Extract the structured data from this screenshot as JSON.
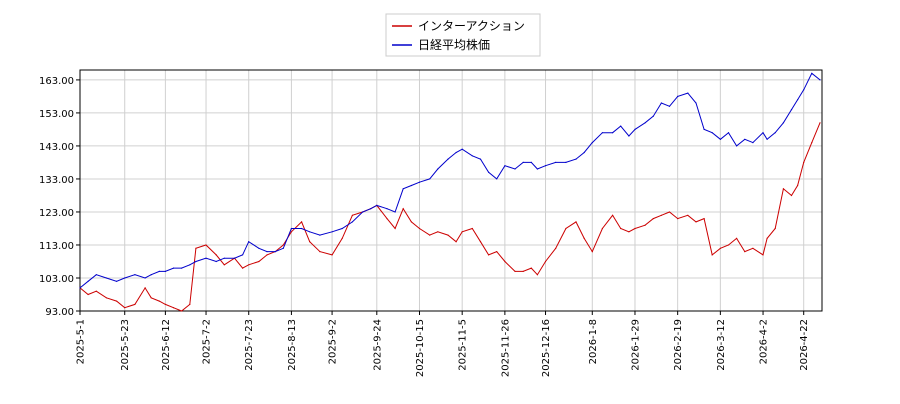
{
  "chart_data": {
    "type": "line",
    "title": "",
    "xlabel": "",
    "ylabel": "",
    "ylim": [
      93,
      166
    ],
    "grid": true,
    "legend_placement": "top-center",
    "yticks": [
      "93.00",
      "103.00",
      "113.00",
      "123.00",
      "133.00",
      "143.00",
      "153.00",
      "163.00"
    ],
    "xticks": [
      "2025-5-1",
      "2025-5-23",
      "2025-6-12",
      "2025-7-2",
      "2025-7-23",
      "2025-8-13",
      "2025-9-2",
      "2025-9-24",
      "2025-10-15",
      "2025-11-5",
      "2025-11-26",
      "2025-12-16",
      "2026-1-8",
      "2026-1-29",
      "2026-2-19",
      "2026-3-12",
      "2026-4-2",
      "2026-4-22"
    ],
    "x_range": [
      "2025-5-1",
      "2026-5-1"
    ],
    "series": [
      {
        "name": "インターアクション",
        "color": "#cc0000",
        "x": [
          "2025-5-1",
          "2025-5-5",
          "2025-5-9",
          "2025-5-14",
          "2025-5-19",
          "2025-5-23",
          "2025-5-28",
          "2025-6-2",
          "2025-6-5",
          "2025-6-9",
          "2025-6-12",
          "2025-6-16",
          "2025-6-20",
          "2025-6-24",
          "2025-6-27",
          "2025-7-2",
          "2025-7-7",
          "2025-7-11",
          "2025-7-16",
          "2025-7-20",
          "2025-7-23",
          "2025-7-28",
          "2025-8-1",
          "2025-8-5",
          "2025-8-9",
          "2025-8-13",
          "2025-8-18",
          "2025-8-22",
          "2025-8-27",
          "2025-9-2",
          "2025-9-7",
          "2025-9-12",
          "2025-9-17",
          "2025-9-21",
          "2025-9-24",
          "2025-9-29",
          "2025-10-3",
          "2025-10-7",
          "2025-10-11",
          "2025-10-15",
          "2025-10-20",
          "2025-10-24",
          "2025-10-29",
          "2025-11-2",
          "2025-11-5",
          "2025-11-10",
          "2025-11-14",
          "2025-11-18",
          "2025-11-22",
          "2025-11-26",
          "2025-12-1",
          "2025-12-5",
          "2025-12-9",
          "2025-12-12",
          "2025-12-16",
          "2025-12-21",
          "2025-12-26",
          "2025-12-31",
          "2026-1-4",
          "2026-1-8",
          "2026-1-13",
          "2026-1-18",
          "2026-1-22",
          "2026-1-26",
          "2026-1-29",
          "2026-2-3",
          "2026-2-7",
          "2026-2-11",
          "2026-2-15",
          "2026-2-19",
          "2026-2-24",
          "2026-2-28",
          "2026-3-4",
          "2026-3-8",
          "2026-3-12",
          "2026-3-16",
          "2026-3-20",
          "2026-3-24",
          "2026-3-28",
          "2026-4-2",
          "2026-4-4",
          "2026-4-8",
          "2026-4-12",
          "2026-4-16",
          "2026-4-19",
          "2026-4-22",
          "2026-4-26",
          "2026-4-30"
        ],
        "y": [
          100,
          98,
          99,
          97,
          96,
          94,
          95,
          100,
          97,
          96,
          95,
          94,
          93,
          95,
          112,
          113,
          110,
          107,
          109,
          106,
          107,
          108,
          110,
          111,
          113,
          117,
          120,
          114,
          111,
          110,
          115,
          122,
          123,
          124,
          125,
          121,
          118,
          124,
          120,
          118,
          116,
          117,
          116,
          114,
          117,
          118,
          114,
          110,
          111,
          108,
          105,
          105,
          106,
          104,
          108,
          112,
          118,
          120,
          115,
          111,
          118,
          122,
          118,
          117,
          118,
          119,
          121,
          122,
          123,
          121,
          122,
          120,
          121,
          110,
          112,
          113,
          115,
          111,
          112,
          110,
          115,
          118,
          130,
          128,
          131,
          138,
          144,
          150
        ]
      },
      {
        "name": "日経平均株価",
        "color": "#0000cc",
        "x": [
          "2025-5-1",
          "2025-5-5",
          "2025-5-9",
          "2025-5-14",
          "2025-5-19",
          "2025-5-23",
          "2025-5-28",
          "2025-6-2",
          "2025-6-5",
          "2025-6-9",
          "2025-6-12",
          "2025-6-16",
          "2025-6-20",
          "2025-6-24",
          "2025-6-27",
          "2025-7-2",
          "2025-7-7",
          "2025-7-11",
          "2025-7-16",
          "2025-7-20",
          "2025-7-23",
          "2025-7-28",
          "2025-8-1",
          "2025-8-5",
          "2025-8-9",
          "2025-8-13",
          "2025-8-18",
          "2025-8-22",
          "2025-8-27",
          "2025-9-2",
          "2025-9-7",
          "2025-9-12",
          "2025-9-17",
          "2025-9-21",
          "2025-9-24",
          "2025-9-29",
          "2025-10-3",
          "2025-10-7",
          "2025-10-11",
          "2025-10-15",
          "2025-10-20",
          "2025-10-24",
          "2025-10-29",
          "2025-11-2",
          "2025-11-5",
          "2025-11-10",
          "2025-11-14",
          "2025-11-18",
          "2025-11-22",
          "2025-11-26",
          "2025-12-1",
          "2025-12-5",
          "2025-12-9",
          "2025-12-12",
          "2025-12-16",
          "2025-12-21",
          "2025-12-26",
          "2025-12-31",
          "2026-1-4",
          "2026-1-8",
          "2026-1-13",
          "2026-1-18",
          "2026-1-22",
          "2026-1-26",
          "2026-1-29",
          "2026-2-3",
          "2026-2-7",
          "2026-2-11",
          "2026-2-15",
          "2026-2-19",
          "2026-2-24",
          "2026-2-28",
          "2026-3-4",
          "2026-3-8",
          "2026-3-12",
          "2026-3-16",
          "2026-3-20",
          "2026-3-24",
          "2026-3-28",
          "2026-4-2",
          "2026-4-4",
          "2026-4-8",
          "2026-4-12",
          "2026-4-16",
          "2026-4-19",
          "2026-4-22",
          "2026-4-26",
          "2026-4-30"
        ],
        "y": [
          100,
          102,
          104,
          103,
          102,
          103,
          104,
          103,
          104,
          105,
          105,
          106,
          106,
          107,
          108,
          109,
          108,
          109,
          109,
          110,
          114,
          112,
          111,
          111,
          112,
          118,
          118,
          117,
          116,
          117,
          118,
          120,
          123,
          124,
          125,
          124,
          123,
          130,
          131,
          132,
          133,
          136,
          139,
          141,
          142,
          140,
          139,
          135,
          133,
          137,
          136,
          138,
          138,
          136,
          137,
          138,
          138,
          139,
          141,
          144,
          147,
          147,
          149,
          146,
          148,
          150,
          152,
          156,
          155,
          158,
          159,
          156,
          148,
          147,
          145,
          147,
          143,
          145,
          144,
          147,
          145,
          147,
          150,
          154,
          157,
          160,
          165,
          163
        ]
      }
    ]
  }
}
